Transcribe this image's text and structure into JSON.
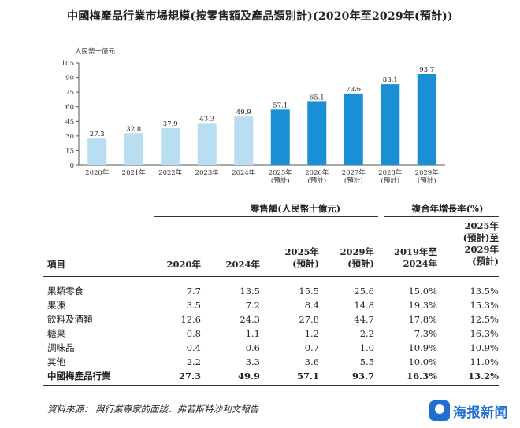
{
  "page": {
    "title": "中國梅產品行業市場規模(按零售額及產品類別計)(2020年至2029年(預計))",
    "source": "資料來源： 與行業專家的面談．弗若斯特沙利文報告",
    "watermark": "海报新闻"
  },
  "chart_data": {
    "type": "bar",
    "ylabel": "人民幣十億元",
    "ylim": [
      0,
      105
    ],
    "yticks": [
      0,
      15,
      30,
      45,
      60,
      75,
      90,
      105
    ],
    "grid": false,
    "categories": [
      "2020年",
      "2021年",
      "2022年",
      "2023年",
      "2024年",
      "2025年\n(預計)",
      "2026年\n(預計)",
      "2027年\n(預計)",
      "2028年\n(預計)",
      "2029年\n(預計)"
    ],
    "values": [
      27.3,
      32.8,
      37.9,
      43.3,
      49.9,
      57.1,
      65.1,
      73.6,
      83.1,
      93.7
    ],
    "colors": {
      "historical": "#b9ddf1",
      "forecast": "#1a8fd6"
    }
  },
  "table": {
    "group_retail": "零售額(人民幣十億元)",
    "group_cagr": "複合年增長率(%)",
    "col_item": "項目",
    "col_2020": "2020年",
    "col_2024": "2024年",
    "col_2025_l1": "2025年",
    "col_2025_l2": "(預計)",
    "col_2029_l1": "2029年",
    "col_2029_l2": "(預計)",
    "col_cagr1_l1": "2019年至",
    "col_cagr1_l2": "2024年",
    "col_cagr2_l1": "2025年",
    "col_cagr2_l2": "(預計)至",
    "col_cagr2_l3": "2029年",
    "col_cagr2_l4": "(預計)",
    "rows": [
      {
        "item": "果類零食",
        "v2020": "7.7",
        "v2024": "13.5",
        "v2025": "15.5",
        "v2029": "25.6",
        "c1": "15.0%",
        "c2": "13.5%"
      },
      {
        "item": "果凍",
        "v2020": "3.5",
        "v2024": "7.2",
        "v2025": "8.4",
        "v2029": "14.8",
        "c1": "19.3%",
        "c2": "15.3%"
      },
      {
        "item": "飲料及酒類",
        "v2020": "12.6",
        "v2024": "24.3",
        "v2025": "27.8",
        "v2029": "44.7",
        "c1": "17.8%",
        "c2": "12.5%"
      },
      {
        "item": "糖果",
        "v2020": "0.8",
        "v2024": "1.1",
        "v2025": "1.2",
        "v2029": "2.2",
        "c1": "7.3%",
        "c2": "16.3%"
      },
      {
        "item": "調味品",
        "v2020": "0.4",
        "v2024": "0.6",
        "v2025": "0.7",
        "v2029": "1.0",
        "c1": "10.9%",
        "c2": "10.9%"
      },
      {
        "item": "其他",
        "v2020": "2.2",
        "v2024": "3.3",
        "v2025": "3.6",
        "v2029": "5.5",
        "c1": "10.0%",
        "c2": "11.0%"
      },
      {
        "item": "中國梅產品行業",
        "v2020": "27.3",
        "v2024": "49.9",
        "v2025": "57.1",
        "v2029": "93.7",
        "c1": "16.3%",
        "c2": "13.2%"
      }
    ]
  }
}
